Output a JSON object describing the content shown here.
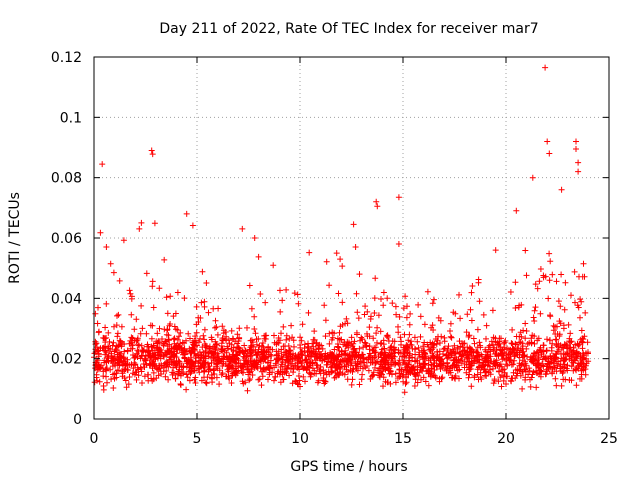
{
  "chart_data": {
    "type": "scatter",
    "title": "Day 211 of 2022, Rate Of TEC Index for receiver mar7",
    "xlabel": "GPS time / hours",
    "ylabel": "ROTI / TECUs",
    "xlim": [
      0,
      25
    ],
    "ylim": [
      0,
      0.12
    ],
    "x_ticks": [
      0,
      5,
      10,
      15,
      20,
      25
    ],
    "x_tick_labels": [
      "0",
      "5",
      "10",
      "15",
      "20",
      "25"
    ],
    "y_ticks": [
      0,
      0.02,
      0.04,
      0.06,
      0.08,
      0.1,
      0.12
    ],
    "y_tick_labels": [
      "0",
      "0.02",
      "0.04",
      "0.06",
      "0.08",
      "0.1",
      "0.12"
    ],
    "grid": true,
    "legend": "none",
    "marker": "plus",
    "color": "#ff0000",
    "data_x_range": [
      0,
      24
    ],
    "typical_band": [
      0.008,
      0.032
    ],
    "outliers": [
      {
        "x": 0.4,
        "y": 0.0845
      },
      {
        "x": 2.8,
        "y": 0.089
      },
      {
        "x": 2.85,
        "y": 0.0878
      },
      {
        "x": 4.5,
        "y": 0.068
      },
      {
        "x": 7.2,
        "y": 0.063
      },
      {
        "x": 12.6,
        "y": 0.0645
      },
      {
        "x": 13.7,
        "y": 0.072
      },
      {
        "x": 13.75,
        "y": 0.0705
      },
      {
        "x": 14.8,
        "y": 0.0735
      },
      {
        "x": 20.5,
        "y": 0.069
      },
      {
        "x": 21.3,
        "y": 0.08
      },
      {
        "x": 21.9,
        "y": 0.1165
      },
      {
        "x": 22.0,
        "y": 0.092
      },
      {
        "x": 22.1,
        "y": 0.088
      },
      {
        "x": 23.4,
        "y": 0.092
      },
      {
        "x": 23.4,
        "y": 0.0895
      },
      {
        "x": 23.5,
        "y": 0.085
      },
      {
        "x": 23.5,
        "y": 0.082
      },
      {
        "x": 22.7,
        "y": 0.076
      },
      {
        "x": 0.6,
        "y": 0.057
      },
      {
        "x": 2.2,
        "y": 0.063
      },
      {
        "x": 2.3,
        "y": 0.065
      },
      {
        "x": 14.8,
        "y": 0.058
      },
      {
        "x": 12.7,
        "y": 0.057
      },
      {
        "x": 19.5,
        "y": 0.056
      },
      {
        "x": 7.8,
        "y": 0.06
      }
    ]
  }
}
